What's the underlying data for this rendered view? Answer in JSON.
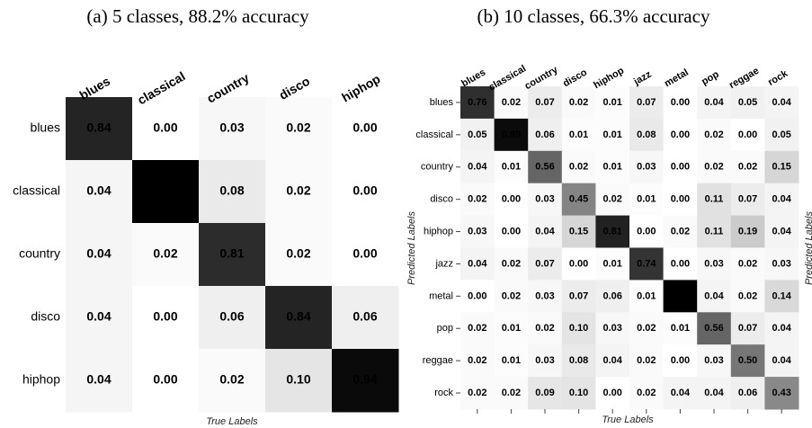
{
  "chart_data": [
    {
      "type": "heatmap",
      "title": "(a) 5 classes, 88.2% accuracy",
      "x_categories": [
        "blues",
        "classical",
        "country",
        "disco",
        "hiphop"
      ],
      "y_categories": [
        "blues",
        "classical",
        "country",
        "disco",
        "hiphop"
      ],
      "values": [
        [
          0.84,
          0,
          0.03,
          0.02,
          0
        ],
        [
          0.04,
          0.98,
          0.08,
          0.02,
          0
        ],
        [
          0.04,
          0.02,
          0.81,
          0.02,
          0
        ],
        [
          0.04,
          0,
          0.06,
          0.84,
          0.06
        ],
        [
          0.04,
          0,
          0.02,
          0.1,
          0.94
        ]
      ],
      "value_labels": [
        [
          "0.84",
          "0.00",
          "0.03",
          "0.02",
          "0.00"
        ],
        [
          "0.04",
          "0.98",
          "0.08",
          "0.02",
          "0.00"
        ],
        [
          "0.04",
          "0.02",
          "0.81",
          "0.02",
          "0.00"
        ],
        [
          "0.04",
          "0.00",
          "0.06",
          "0.84",
          "0.06"
        ],
        [
          "0.04",
          "0.00",
          "0.02",
          "0.10",
          "0.94"
        ]
      ],
      "xlabel": "True Labels",
      "color": "#000000"
    },
    {
      "type": "heatmap",
      "title": "(b) 10 classes, 66.3% accuracy",
      "x_categories": [
        "blues",
        "classical",
        "country",
        "disco",
        "hiphop",
        "jazz",
        "metal",
        "pop",
        "reggae",
        "rock"
      ],
      "y_categories": [
        "blues",
        "classical",
        "country",
        "disco",
        "hiphop",
        "jazz",
        "metal",
        "pop",
        "reggae",
        "rock"
      ],
      "values": [
        [
          0.76,
          0.02,
          0.07,
          0.02,
          0.01,
          0.07,
          0,
          0.04,
          0.05,
          0.04
        ],
        [
          0.05,
          0.89,
          0.06,
          0.01,
          0.01,
          0.08,
          0,
          0.02,
          0,
          0.05
        ],
        [
          0.04,
          0.01,
          0.56,
          0.02,
          0.01,
          0.03,
          0,
          0.02,
          0.02,
          0.15
        ],
        [
          0.02,
          0,
          0.03,
          0.45,
          0.02,
          0.01,
          0,
          0.11,
          0.07,
          0.04
        ],
        [
          0.03,
          0,
          0.04,
          0.15,
          0.81,
          0,
          0.02,
          0.11,
          0.19,
          0.04
        ],
        [
          0.04,
          0.02,
          0.07,
          0,
          0.01,
          0.74,
          0,
          0.03,
          0.02,
          0.03
        ],
        [
          0,
          0.02,
          0.03,
          0.07,
          0.06,
          0.01,
          0.93,
          0.04,
          0.02,
          0.14
        ],
        [
          0.02,
          0.01,
          0.02,
          0.1,
          0.03,
          0.02,
          0.01,
          0.56,
          0.07,
          0.04
        ],
        [
          0.02,
          0.01,
          0.03,
          0.08,
          0.04,
          0.02,
          0,
          0.03,
          0.5,
          0.04
        ],
        [
          0.02,
          0.02,
          0.09,
          0.1,
          0,
          0.02,
          0.04,
          0.04,
          0.06,
          0.43
        ]
      ],
      "value_labels": [
        [
          "0.76",
          "0.02",
          "0.07",
          "0.02",
          "0.01",
          "0.07",
          "0.00",
          "0.04",
          "0.05",
          "0.04"
        ],
        [
          "0.05",
          "0.89",
          "0.06",
          "0.01",
          "0.01",
          "0.08",
          "0.00",
          "0.02",
          "0.00",
          "0.05"
        ],
        [
          "0.04",
          "0.01",
          "0.56",
          "0.02",
          "0.01",
          "0.03",
          "0.00",
          "0.02",
          "0.02",
          "0.15"
        ],
        [
          "0.02",
          "0.00",
          "0.03",
          "0.45",
          "0.02",
          "0.01",
          "0.00",
          "0.11",
          "0.07",
          "0.04"
        ],
        [
          "0.03",
          "0.00",
          "0.04",
          "0.15",
          "0.81",
          "0.00",
          "0.02",
          "0.11",
          "0.19",
          "0.04"
        ],
        [
          "0.04",
          "0.02",
          "0.07",
          "0.00",
          "0.01",
          "0.74",
          "0.00",
          "0.03",
          "0.02",
          "0.03"
        ],
        [
          "0.00",
          "0.02",
          "0.03",
          "0.07",
          "0.06",
          "0.01",
          "0.93",
          "0.04",
          "0.02",
          "0.14"
        ],
        [
          "0.02",
          "0.01",
          "0.02",
          "0.10",
          "0.03",
          "0.02",
          "0.01",
          "0.56",
          "0.07",
          "0.04"
        ],
        [
          "0.02",
          "0.01",
          "0.03",
          "0.08",
          "0.04",
          "0.02",
          "0.00",
          "0.03",
          "0.50",
          "0.04"
        ],
        [
          "0.02",
          "0.02",
          "0.09",
          "0.10",
          "0.00",
          "0.02",
          "0.04",
          "0.04",
          "0.06",
          "0.43"
        ]
      ],
      "xlabel": "True Labels",
      "ylabel": "Predicted Labels",
      "y2label": "Predicted Labels",
      "color": "#000000",
      "ticks": true
    }
  ]
}
